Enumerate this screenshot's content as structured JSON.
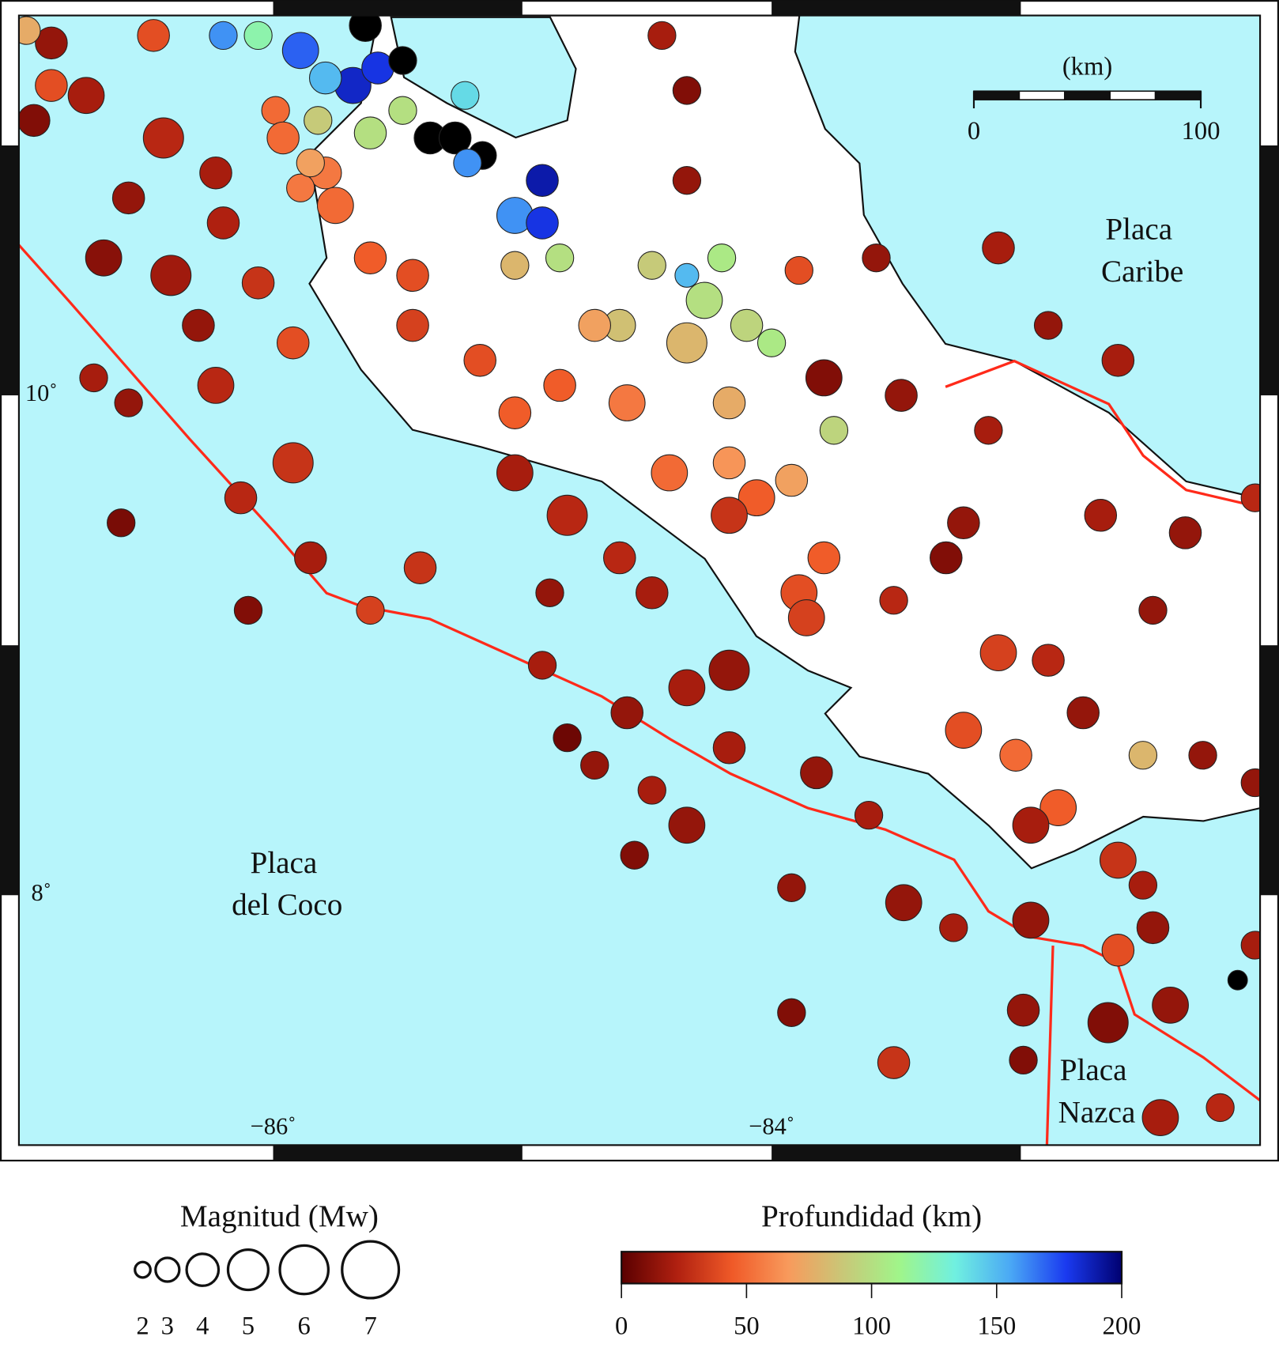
{
  "map": {
    "lonlim": [
      -87.02,
      -82.04
    ],
    "latlim": [
      7.0,
      11.52
    ],
    "lonticks": [
      {
        "value": -86,
        "label": "−86˚"
      },
      {
        "value": -84,
        "label": "−84˚"
      }
    ],
    "latticks": [
      {
        "value": 10,
        "label": "10˚"
      },
      {
        "value": 8,
        "label": "8˚"
      }
    ],
    "sea_color": "#b7f5fb",
    "land_color": "#ffffff",
    "plate_boundary_color": "#ff2a1a",
    "plates": [
      [
        "Placa",
        "Caribe"
      ],
      [
        "Placa",
        "del Coco"
      ],
      [
        "Placa",
        "Nazca"
      ]
    ],
    "events": [
      [
        -86.89,
        11.41,
        15,
        4
      ],
      [
        -86.75,
        11.2,
        20,
        4.5
      ],
      [
        -86.96,
        11.1,
        10,
        4
      ],
      [
        -86.44,
        11.03,
        25,
        5
      ],
      [
        -86.58,
        10.79,
        15,
        4
      ],
      [
        -86.23,
        10.89,
        20,
        4
      ],
      [
        -86.68,
        10.55,
        12,
        4.5
      ],
      [
        -86.41,
        10.48,
        18,
        5
      ],
      [
        -86.2,
        10.69,
        22,
        4
      ],
      [
        -86.06,
        10.45,
        30,
        4
      ],
      [
        -86.3,
        10.28,
        15,
        4
      ],
      [
        -86.72,
        10.07,
        20,
        3.5
      ],
      [
        -86.58,
        9.97,
        15,
        3.5
      ],
      [
        -86.23,
        10.04,
        25,
        4.5
      ],
      [
        -85.92,
        10.21,
        40,
        4
      ],
      [
        -85.92,
        9.73,
        30,
        5
      ],
      [
        -86.13,
        9.59,
        25,
        4
      ],
      [
        -86.61,
        9.49,
        8,
        3.5
      ],
      [
        -85.85,
        9.35,
        20,
        4
      ],
      [
        -85.41,
        9.31,
        30,
        4
      ],
      [
        -86.1,
        9.14,
        10,
        3.5
      ],
      [
        -85.61,
        9.14,
        35,
        3.5
      ],
      [
        -86.89,
        11.24,
        40,
        4
      ],
      [
        -86.48,
        11.44,
        40,
        4
      ],
      [
        -86.99,
        11.46,
        75,
        3.5
      ],
      [
        -85.89,
        11.38,
        170,
        4.5
      ],
      [
        -85.68,
        11.24,
        185,
        4.5
      ],
      [
        -85.58,
        11.31,
        180,
        4
      ],
      [
        -86.2,
        11.44,
        160,
        3.5
      ],
      [
        -86.06,
        11.44,
        120,
        3.5
      ],
      [
        -85.99,
        11.14,
        50,
        3.5
      ],
      [
        -85.79,
        11.27,
        150,
        4
      ],
      [
        -85.63,
        11.48,
        220,
        4
      ],
      [
        -85.48,
        11.34,
        220,
        3.5
      ],
      [
        -85.37,
        11.03,
        220,
        4
      ],
      [
        -85.27,
        11.03,
        220,
        4
      ],
      [
        -85.16,
        10.96,
        220,
        3.5
      ],
      [
        -85.22,
        10.93,
        160,
        3.5
      ],
      [
        -84.92,
        10.86,
        190,
        4
      ],
      [
        -85.03,
        10.72,
        160,
        4.5
      ],
      [
        -84.92,
        10.69,
        180,
        4
      ],
      [
        -85.48,
        11.14,
        100,
        3.5
      ],
      [
        -85.61,
        11.05,
        100,
        4
      ],
      [
        -85.23,
        11.2,
        140,
        3.5
      ],
      [
        -85.79,
        10.89,
        55,
        4
      ],
      [
        -85.75,
        10.76,
        50,
        4.5
      ],
      [
        -85.89,
        10.83,
        55,
        3.5
      ],
      [
        -85.85,
        10.93,
        70,
        3.5
      ],
      [
        -85.96,
        11.03,
        50,
        4
      ],
      [
        -85.82,
        11.1,
        90,
        3.5
      ],
      [
        -84.27,
        10.38,
        100,
        4.5
      ],
      [
        -84.34,
        10.21,
        80,
        5
      ],
      [
        -84.48,
        10.52,
        90,
        3.5
      ],
      [
        -84.1,
        10.28,
        95,
        4
      ],
      [
        -84.61,
        10.28,
        85,
        4
      ],
      [
        -84.71,
        10.28,
        70,
        4
      ],
      [
        -84.85,
        10.55,
        100,
        3.5
      ],
      [
        -85.03,
        10.52,
        80,
        3.5
      ],
      [
        -84.2,
        10.55,
        105,
        3.5
      ],
      [
        -84.17,
        9.97,
        75,
        4
      ],
      [
        -84.0,
        10.21,
        105,
        3.5
      ],
      [
        -84.34,
        10.48,
        150,
        3
      ],
      [
        -83.75,
        9.86,
        95,
        3.5
      ],
      [
        -83.92,
        9.66,
        70,
        4
      ],
      [
        -84.17,
        9.73,
        65,
        4
      ],
      [
        -84.58,
        9.97,
        55,
        4.5
      ],
      [
        -84.85,
        10.04,
        45,
        4
      ],
      [
        -85.17,
        10.14,
        40,
        4
      ],
      [
        -85.44,
        10.48,
        40,
        4
      ],
      [
        -85.61,
        10.55,
        45,
        4
      ],
      [
        -85.44,
        10.28,
        35,
        4
      ],
      [
        -85.03,
        9.93,
        45,
        4
      ],
      [
        -84.41,
        9.69,
        50,
        4.5
      ],
      [
        -84.06,
        9.59,
        45,
        4.5
      ],
      [
        -84.17,
        9.52,
        30,
        4.5
      ],
      [
        -84.82,
        9.52,
        25,
        5
      ],
      [
        -85.03,
        9.69,
        20,
        4.5
      ],
      [
        -84.61,
        9.35,
        25,
        4
      ],
      [
        -84.89,
        9.21,
        15,
        3.5
      ],
      [
        -84.48,
        9.21,
        20,
        4
      ],
      [
        -83.89,
        9.21,
        40,
        4.5
      ],
      [
        -84.17,
        8.9,
        15,
        5
      ],
      [
        -84.34,
        8.83,
        20,
        4.5
      ],
      [
        -83.86,
        9.11,
        35,
        4.5
      ],
      [
        -83.79,
        9.35,
        45,
        4
      ],
      [
        -84.17,
        8.59,
        20,
        4
      ],
      [
        -84.58,
        8.73,
        15,
        4
      ],
      [
        -84.71,
        8.52,
        15,
        3.5
      ],
      [
        -84.82,
        8.63,
        5,
        3.5
      ],
      [
        -84.48,
        8.42,
        20,
        3.5
      ],
      [
        -84.34,
        8.28,
        15,
        4.5
      ],
      [
        -84.55,
        8.16,
        10,
        3.5
      ],
      [
        -84.92,
        8.92,
        20,
        3.5
      ],
      [
        -83.82,
        8.49,
        15,
        4
      ],
      [
        -83.61,
        8.32,
        20,
        3.5
      ],
      [
        -83.92,
        8.03,
        15,
        3.5
      ],
      [
        -83.92,
        7.53,
        10,
        3.5
      ],
      [
        -83.51,
        7.33,
        30,
        4
      ],
      [
        -83.79,
        10.07,
        10,
        4.5
      ],
      [
        -83.48,
        10.0,
        15,
        4
      ],
      [
        -83.13,
        9.86,
        20,
        3.5
      ],
      [
        -83.23,
        9.49,
        15,
        4
      ],
      [
        -83.3,
        9.35,
        10,
        4
      ],
      [
        -83.51,
        9.18,
        25,
        3.5
      ],
      [
        -83.09,
        8.97,
        35,
        4.5
      ],
      [
        -82.89,
        8.94,
        25,
        4
      ],
      [
        -83.23,
        8.66,
        40,
        4.5
      ],
      [
        -83.02,
        8.56,
        50,
        4
      ],
      [
        -82.85,
        8.35,
        45,
        4.5
      ],
      [
        -82.96,
        8.28,
        20,
        4.5
      ],
      [
        -82.75,
        8.73,
        15,
        4
      ],
      [
        -82.61,
        10.14,
        20,
        4
      ],
      [
        -82.89,
        10.28,
        15,
        3.5
      ],
      [
        -83.09,
        10.59,
        20,
        4
      ],
      [
        -83.58,
        10.55,
        15,
        3.5
      ],
      [
        -82.68,
        9.52,
        20,
        4
      ],
      [
        -82.47,
        9.14,
        15,
        3.5
      ],
      [
        -82.34,
        9.45,
        15,
        4
      ],
      [
        -82.51,
        8.56,
        80,
        3.5
      ],
      [
        -82.27,
        8.56,
        15,
        3.5
      ],
      [
        -82.06,
        9.59,
        25,
        3.5
      ],
      [
        -82.06,
        8.45,
        15,
        3.5
      ],
      [
        -84.34,
        11.22,
        10,
        3.5
      ],
      [
        -84.44,
        11.44,
        20,
        3.5
      ],
      [
        -84.34,
        10.86,
        15,
        3.5
      ],
      [
        -83.89,
        10.5,
        40,
        3.5
      ],
      [
        -83.47,
        7.97,
        15,
        4.5
      ],
      [
        -83.27,
        7.87,
        20,
        3.5
      ],
      [
        -82.96,
        7.9,
        15,
        4.5
      ],
      [
        -82.61,
        8.14,
        30,
        4.5
      ],
      [
        -82.61,
        7.78,
        40,
        4
      ],
      [
        -82.65,
        7.49,
        10,
        5
      ],
      [
        -82.99,
        7.54,
        15,
        4
      ],
      [
        -82.99,
        7.34,
        10,
        3.5
      ],
      [
        -82.4,
        7.56,
        15,
        4.5
      ],
      [
        -82.44,
        7.11,
        20,
        4.5
      ],
      [
        -82.2,
        7.15,
        25,
        3.5
      ],
      [
        -82.13,
        7.66,
        220,
        2.5
      ],
      [
        -82.06,
        7.8,
        20,
        3.5
      ],
      [
        -82.47,
        7.87,
        15,
        4
      ],
      [
        -82.51,
        8.04,
        20,
        3.5
      ]
    ]
  },
  "scale_bar": {
    "title": "(km)",
    "ticks": [
      0,
      100
    ]
  },
  "legend_magnitude": {
    "title": "Magnitud (Mw)",
    "values": [
      2,
      3,
      4,
      5,
      6,
      7
    ]
  },
  "legend_depth": {
    "title": "Profundidad (km)",
    "range": [
      0,
      200
    ],
    "ticks": [
      0,
      50,
      100,
      150,
      200
    ],
    "colors": [
      "#5a0000",
      "#b02010",
      "#f05a28",
      "#f89a5c",
      "#c8c878",
      "#a0f58a",
      "#70f0e0",
      "#4aa8f5",
      "#1a3af0",
      "#000070"
    ],
    "beyond_color": "#000000"
  }
}
